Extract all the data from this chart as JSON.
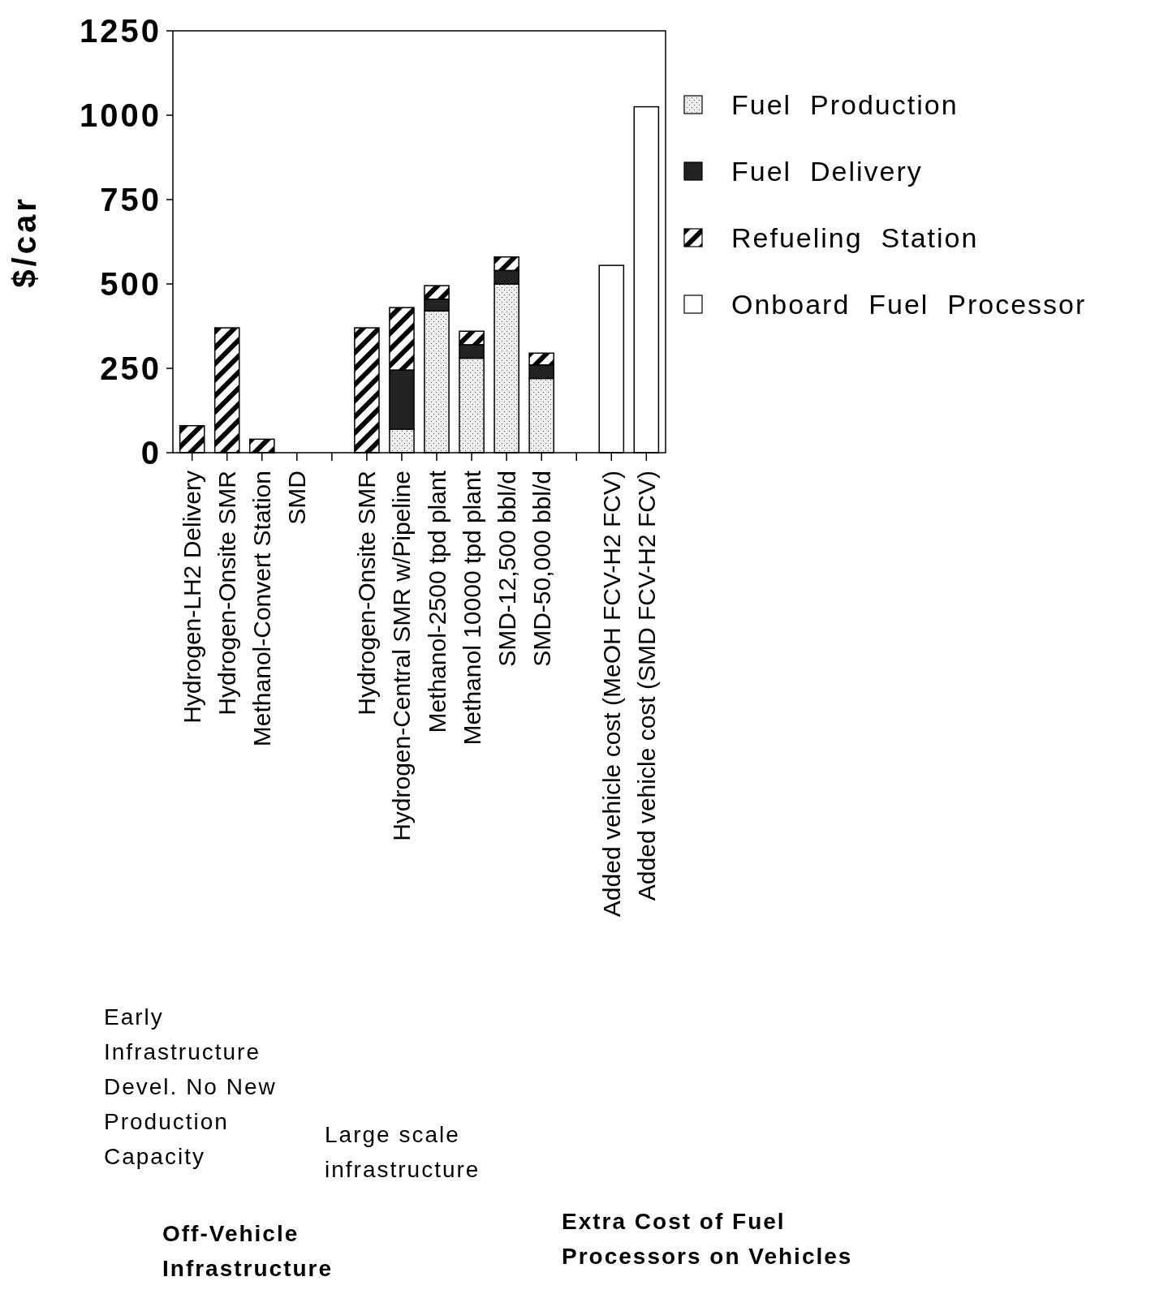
{
  "chart_data": {
    "type": "bar",
    "stacked": true,
    "ylabel": "$/car",
    "ylim": [
      0,
      1250
    ],
    "yticks": [
      0,
      250,
      500,
      750,
      1000,
      1250
    ],
    "legend": "right",
    "grid": false,
    "categories": [
      "Hydrogen-LH2 Delivery",
      "Hydrogen-Onsite SMR",
      "Methanol-Convert Station",
      "SMD",
      null,
      "Hydrogen-Onsite SMR",
      "Hydrogen-Central SMR w/Pipeline",
      "Methanol-2500  tpd  plant",
      "Methanol 10000  tpd  plant",
      "SMD-12,500  bbl/d",
      "SMD-50,000  bbl/d",
      null,
      "Added vehicle cost (MeOH FCV-H2 FCV)",
      "Added vehicle cost (SMD FCV-H2 FCV)"
    ],
    "series": [
      {
        "name": "Fuel  Production",
        "color": "#eeeeee",
        "values": [
          null,
          null,
          null,
          null,
          null,
          null,
          70,
          420,
          280,
          500,
          220,
          null,
          null,
          null
        ]
      },
      {
        "name": "Fuel  Delivery",
        "color": "#222222",
        "values": [
          null,
          null,
          null,
          null,
          null,
          null,
          175,
          35,
          40,
          40,
          40,
          null,
          null,
          null
        ]
      },
      {
        "name": "Refueling  Station",
        "color": "#000000",
        "values": [
          80,
          370,
          40,
          0,
          null,
          370,
          185,
          40,
          40,
          40,
          35,
          null,
          null,
          null
        ]
      },
      {
        "name": "Onboard  Fuel  Processor",
        "color": "#ffffff",
        "values": [
          null,
          null,
          null,
          null,
          null,
          null,
          null,
          null,
          null,
          null,
          null,
          null,
          555,
          1025
        ]
      }
    ],
    "annotations": [
      "Early Infrastructure Devel. No New Production Capacity",
      "Large  scale infrastructure",
      "Off-Vehicle Infrastructure",
      "Extra  Cost  of  Fuel Processors  on  Vehicles"
    ]
  }
}
